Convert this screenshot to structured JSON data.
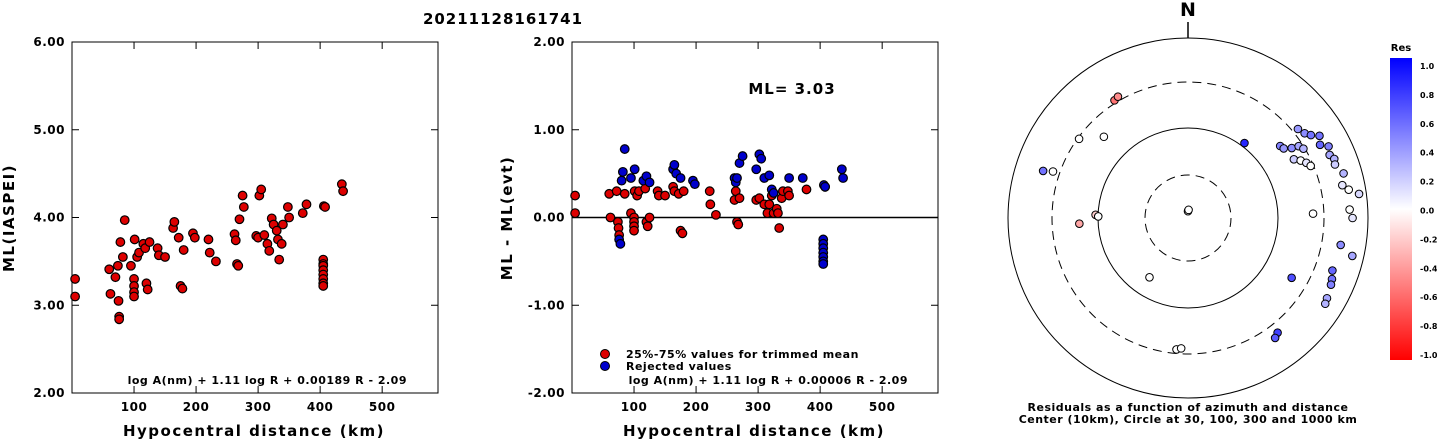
{
  "title": "20211128161741",
  "panel1": {
    "ylabel": "ML(IASPEI)",
    "xlabel": "Hypocentral distance (km)",
    "formula": "log A(nm) + 1.11 log R + 0.00189 R - 2.09",
    "yticks": [
      "6.00",
      "5.00",
      "4.00",
      "3.00",
      "2.00"
    ],
    "xticks": [
      "100",
      "200",
      "300",
      "400",
      "500"
    ]
  },
  "panel2": {
    "ylabel": "ML - ML(evt)",
    "xlabel": "Hypocentral distance (km)",
    "formula": "log A(nm) + 1.11 log R + 0.00006 R - 2.09",
    "ml_text": "ML= 3.03",
    "legend_trimmed": "25%-75% values for trimmed mean",
    "legend_rejected": "Rejected values",
    "yticks": [
      "2.00",
      "1.00",
      "0.00",
      "-1.00",
      "-2.00"
    ],
    "xticks": [
      "100",
      "200",
      "300",
      "400",
      "500"
    ]
  },
  "panel3": {
    "north": "N",
    "caption1": "Residuals as a function of azimuth and distance",
    "caption2": "Center (10km), Circle at 30, 100, 300 and 1000 km",
    "colorbar_title": "Res",
    "colorbar_ticks": [
      "1.0",
      "0.8",
      "0.6",
      "0.4",
      "0.2",
      "0.0",
      "-0.2",
      "-0.4",
      "-0.6",
      "-0.8",
      "-1.0"
    ]
  },
  "colors": {
    "trimmed": "#dd0000",
    "rejected": "#0000cc",
    "axes": "#000000"
  },
  "chart_data": [
    {
      "type": "scatter",
      "title": "20211128161741",
      "xlabel": "Hypocentral distance (km)",
      "ylabel": "ML(IASPEI)",
      "xlim": [
        0,
        590
      ],
      "ylim": [
        2.0,
        6.0
      ],
      "series": [
        {
          "points": [
            [
              5,
              3.3
            ],
            [
              5,
              3.1
            ],
            [
              60,
              3.41
            ],
            [
              62,
              3.13
            ],
            [
              70,
              3.32
            ],
            [
              74,
              3.45
            ],
            [
              75,
              3.05
            ],
            [
              76,
              2.87
            ],
            [
              76,
              2.84
            ],
            [
              78,
              3.72
            ],
            [
              82,
              3.55
            ],
            [
              85,
              3.97
            ],
            [
              95,
              3.45
            ],
            [
              100,
              3.3
            ],
            [
              100,
              3.22
            ],
            [
              100,
              3.15
            ],
            [
              100,
              3.1
            ],
            [
              101,
              3.75
            ],
            [
              105,
              3.55
            ],
            [
              108,
              3.6
            ],
            [
              115,
              3.7
            ],
            [
              118,
              3.65
            ],
            [
              120,
              3.25
            ],
            [
              122,
              3.18
            ],
            [
              125,
              3.72
            ],
            [
              138,
              3.65
            ],
            [
              140,
              3.57
            ],
            [
              150,
              3.55
            ],
            [
              163,
              3.88
            ],
            [
              165,
              3.95
            ],
            [
              172,
              3.77
            ],
            [
              175,
              3.22
            ],
            [
              178,
              3.19
            ],
            [
              180,
              3.63
            ],
            [
              195,
              3.82
            ],
            [
              198,
              3.77
            ],
            [
              220,
              3.75
            ],
            [
              222,
              3.6
            ],
            [
              232,
              3.5
            ],
            [
              262,
              3.81
            ],
            [
              264,
              3.74
            ],
            [
              266,
              3.47
            ],
            [
              268,
              3.45
            ],
            [
              270,
              3.98
            ],
            [
              275,
              4.25
            ],
            [
              277,
              4.12
            ],
            [
              297,
              3.79
            ],
            [
              300,
              3.77
            ],
            [
              302,
              4.25
            ],
            [
              305,
              4.32
            ],
            [
              310,
              3.8
            ],
            [
              315,
              3.7
            ],
            [
              318,
              3.62
            ],
            [
              322,
              3.99
            ],
            [
              325,
              3.92
            ],
            [
              330,
              3.85
            ],
            [
              332,
              3.75
            ],
            [
              334,
              3.52
            ],
            [
              338,
              3.7
            ],
            [
              340,
              3.92
            ],
            [
              348,
              4.12
            ],
            [
              350,
              4.0
            ],
            [
              372,
              4.05
            ],
            [
              378,
              4.15
            ],
            [
              405,
              3.52
            ],
            [
              405,
              3.47
            ],
            [
              405,
              3.45
            ],
            [
              405,
              3.4
            ],
            [
              405,
              3.35
            ],
            [
              405,
              3.3
            ],
            [
              405,
              3.25
            ],
            [
              405,
              3.22
            ],
            [
              406,
              4.13
            ],
            [
              408,
              4.12
            ],
            [
              435,
              4.38
            ],
            [
              437,
              4.3
            ]
          ]
        }
      ]
    },
    {
      "type": "scatter",
      "xlabel": "Hypocentral distance (km)",
      "ylabel": "ML - ML(evt)",
      "xlim": [
        0,
        590
      ],
      "ylim": [
        -2.0,
        2.0
      ],
      "annotation": "ML= 3.03",
      "series": [
        {
          "name": "25%-75% values for trimmed mean",
          "points": [
            [
              5,
              0.25
            ],
            [
              5,
              0.05
            ],
            [
              60,
              0.27
            ],
            [
              62,
              0.0
            ],
            [
              72,
              0.3
            ],
            [
              74,
              -0.05
            ],
            [
              75,
              -0.12
            ],
            [
              76,
              -0.2
            ],
            [
              85,
              0.27
            ],
            [
              95,
              0.05
            ],
            [
              100,
              0.0
            ],
            [
              100,
              -0.05
            ],
            [
              100,
              -0.1
            ],
            [
              100,
              -0.15
            ],
            [
              101,
              0.3
            ],
            [
              105,
              0.25
            ],
            [
              108,
              0.3
            ],
            [
              118,
              0.33
            ],
            [
              120,
              -0.05
            ],
            [
              122,
              -0.1
            ],
            [
              125,
              0.0
            ],
            [
              138,
              0.3
            ],
            [
              140,
              0.25
            ],
            [
              150,
              0.25
            ],
            [
              163,
              0.35
            ],
            [
              165,
              0.3
            ],
            [
              172,
              0.27
            ],
            [
              175,
              -0.15
            ],
            [
              178,
              -0.18
            ],
            [
              180,
              0.3
            ],
            [
              222,
              0.3
            ],
            [
              223,
              0.15
            ],
            [
              232,
              0.03
            ],
            [
              262,
              0.2
            ],
            [
              264,
              0.3
            ],
            [
              266,
              -0.05
            ],
            [
              268,
              -0.08
            ],
            [
              270,
              0.22
            ],
            [
              297,
              0.2
            ],
            [
              302,
              0.22
            ],
            [
              310,
              0.15
            ],
            [
              315,
              0.05
            ],
            [
              318,
              0.15
            ],
            [
              322,
              0.25
            ],
            [
              325,
              0.05
            ],
            [
              330,
              0.1
            ],
            [
              332,
              0.05
            ],
            [
              334,
              -0.12
            ],
            [
              338,
              0.22
            ],
            [
              340,
              0.3
            ],
            [
              348,
              0.3
            ],
            [
              350,
              0.25
            ],
            [
              378,
              0.32
            ],
            [
              408,
              0.35
            ]
          ]
        },
        {
          "name": "Rejected values",
          "points": [
            [
              76,
              -0.25
            ],
            [
              78,
              -0.3
            ],
            [
              80,
              0.42
            ],
            [
              82,
              0.52
            ],
            [
              85,
              0.78
            ],
            [
              95,
              0.45
            ],
            [
              101,
              0.55
            ],
            [
              115,
              0.42
            ],
            [
              120,
              0.47
            ],
            [
              125,
              0.4
            ],
            [
              163,
              0.55
            ],
            [
              165,
              0.6
            ],
            [
              168,
              0.5
            ],
            [
              175,
              0.45
            ],
            [
              195,
              0.42
            ],
            [
              198,
              0.38
            ],
            [
              262,
              0.45
            ],
            [
              264,
              0.4
            ],
            [
              266,
              0.45
            ],
            [
              270,
              0.62
            ],
            [
              275,
              0.7
            ],
            [
              297,
              0.55
            ],
            [
              302,
              0.72
            ],
            [
              305,
              0.67
            ],
            [
              310,
              0.45
            ],
            [
              318,
              0.48
            ],
            [
              322,
              0.32
            ],
            [
              325,
              0.28
            ],
            [
              350,
              0.45
            ],
            [
              372,
              0.45
            ],
            [
              405,
              -0.25
            ],
            [
              405,
              -0.3
            ],
            [
              405,
              -0.35
            ],
            [
              405,
              -0.4
            ],
            [
              405,
              -0.45
            ],
            [
              405,
              -0.5
            ],
            [
              405,
              -0.53
            ],
            [
              406,
              0.37
            ],
            [
              408,
              0.35
            ],
            [
              435,
              0.55
            ],
            [
              437,
              0.45
            ]
          ]
        }
      ]
    }
  ],
  "polar_points": [
    {
      "az": 0,
      "d": 0.05,
      "r": 0.0
    },
    {
      "az": 4,
      "d": 0.06,
      "r": 0.0
    },
    {
      "az": -32,
      "d": 1.02,
      "r": -0.55
    },
    {
      "az": -30,
      "d": 1.03,
      "r": -0.45
    },
    {
      "az": -46,
      "d": 0.86,
      "r": 0.0
    },
    {
      "az": -54,
      "d": 0.99,
      "r": 0.0
    },
    {
      "az": -72,
      "d": 1.12,
      "r": 0.55
    },
    {
      "az": -71,
      "d": 1.05,
      "r": 0.0
    },
    {
      "az": -88,
      "d": 0.68,
      "r": -0.2
    },
    {
      "az": -93,
      "d": 0.8,
      "r": -0.35
    },
    {
      "az": -89,
      "d": 0.66,
      "r": 0.0
    },
    {
      "az": -147,
      "d": 0.52,
      "r": 0.0
    },
    {
      "az": -175,
      "d": 0.97,
      "r": 0.0
    },
    {
      "az": -177,
      "d": 0.96,
      "r": 0.0
    },
    {
      "az": 37,
      "d": 0.69,
      "r": 0.85
    },
    {
      "az": 52,
      "d": 0.86,
      "r": 0.5
    },
    {
      "az": 54,
      "d": 0.87,
      "r": 0.4
    },
    {
      "az": 56,
      "d": 0.92,
      "r": 0.45
    },
    {
      "az": 57,
      "d": 0.97,
      "r": 0.35
    },
    {
      "az": 59,
      "d": 0.99,
      "r": 0.3
    },
    {
      "az": 61,
      "d": 0.89,
      "r": 0.2
    },
    {
      "az": 63,
      "d": 0.93,
      "r": 0.0
    },
    {
      "az": 65,
      "d": 0.96,
      "r": 0.1
    },
    {
      "az": 67,
      "d": 0.98,
      "r": 0.0
    },
    {
      "az": 51,
      "d": 1.04,
      "r": 0.4
    },
    {
      "az": 54,
      "d": 1.06,
      "r": 0.45
    },
    {
      "az": 56,
      "d": 1.09,
      "r": 0.55
    },
    {
      "az": 58,
      "d": 1.14,
      "r": 0.55
    },
    {
      "az": 61,
      "d": 1.11,
      "r": 0.6
    },
    {
      "az": 63,
      "d": 1.16,
      "r": 0.5
    },
    {
      "az": 66,
      "d": 1.14,
      "r": 0.35
    },
    {
      "az": 68,
      "d": 1.16,
      "r": 0.3
    },
    {
      "az": 70,
      "d": 1.15,
      "r": 0.2
    },
    {
      "az": 74,
      "d": 1.19,
      "r": 0.3
    },
    {
      "az": 78,
      "d": 1.16,
      "r": 0.1
    },
    {
      "az": 80,
      "d": 1.2,
      "r": 0.0
    },
    {
      "az": 82,
      "d": 1.27,
      "r": 0.15
    },
    {
      "az": 87,
      "d": 1.19,
      "r": 0.0
    },
    {
      "az": 90,
      "d": 1.21,
      "r": 0.1
    },
    {
      "az": 88,
      "d": 0.92,
      "r": 0.0
    },
    {
      "az": 100,
      "d": 1.14,
      "r": 0.45
    },
    {
      "az": 103,
      "d": 1.24,
      "r": 0.35
    },
    {
      "az": 110,
      "d": 1.13,
      "r": 0.6
    },
    {
      "az": 113,
      "d": 1.15,
      "r": 0.55
    },
    {
      "az": 115,
      "d": 1.16,
      "r": 0.5
    },
    {
      "az": 120,
      "d": 1.18,
      "r": 0.35
    },
    {
      "az": 122,
      "d": 1.19,
      "r": 0.3
    },
    {
      "az": 120,
      "d": 0.88,
      "r": 0.7
    },
    {
      "az": 142,
      "d": 1.07,
      "r": 0.75
    },
    {
      "az": 144,
      "d": 1.09,
      "r": 0.65
    }
  ]
}
